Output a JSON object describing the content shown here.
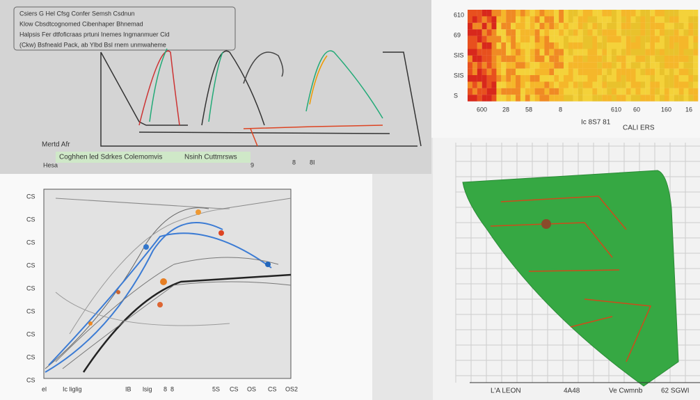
{
  "top_left": {
    "legend": [
      "Csiers G Hel Cfsg   Confer Semsh   Csdnun",
      "Klow Cbsdtcognomed Cibenhaper Bhnemad",
      "Halpsis Fer dtfoficraas prtuni Inemes Ingmanmuer Cid",
      "(Ckw) Bsfneald Pack, ab Ylbd Bsl rnem unmwaheme"
    ],
    "axis_label": "Mertd Afr",
    "caption_left": "Coghhen led Sdrkes Colemomvis",
    "caption_right": "Nsinh Cuttmrsws",
    "small_label": "Hesa",
    "ticks": [
      "9",
      "8",
      "8I"
    ]
  },
  "heatmap": {
    "yticks": [
      "610",
      "69",
      "SIS",
      "SIS",
      "S"
    ],
    "xticks": [
      "600",
      "28",
      "58",
      "8",
      "610",
      "60",
      "160",
      "16"
    ],
    "xlabel_left": "Ic 8S7 81",
    "xlabel_right": "CALI ERS"
  },
  "line_panel": {
    "yticks": [
      "CS",
      "CS",
      "CS",
      "CS",
      "CS",
      "CS",
      "CS",
      "CS",
      "CS"
    ],
    "xticks": [
      "el",
      "Ic liglig",
      "IB",
      "lsig",
      "8",
      "8",
      "5S",
      "CS",
      "OS",
      "CS",
      "OS2"
    ]
  },
  "green_panel": {
    "xticks": [
      "L'A LEON",
      "4A48",
      "Ve Cwmnb",
      "62 SGWI"
    ]
  }
}
